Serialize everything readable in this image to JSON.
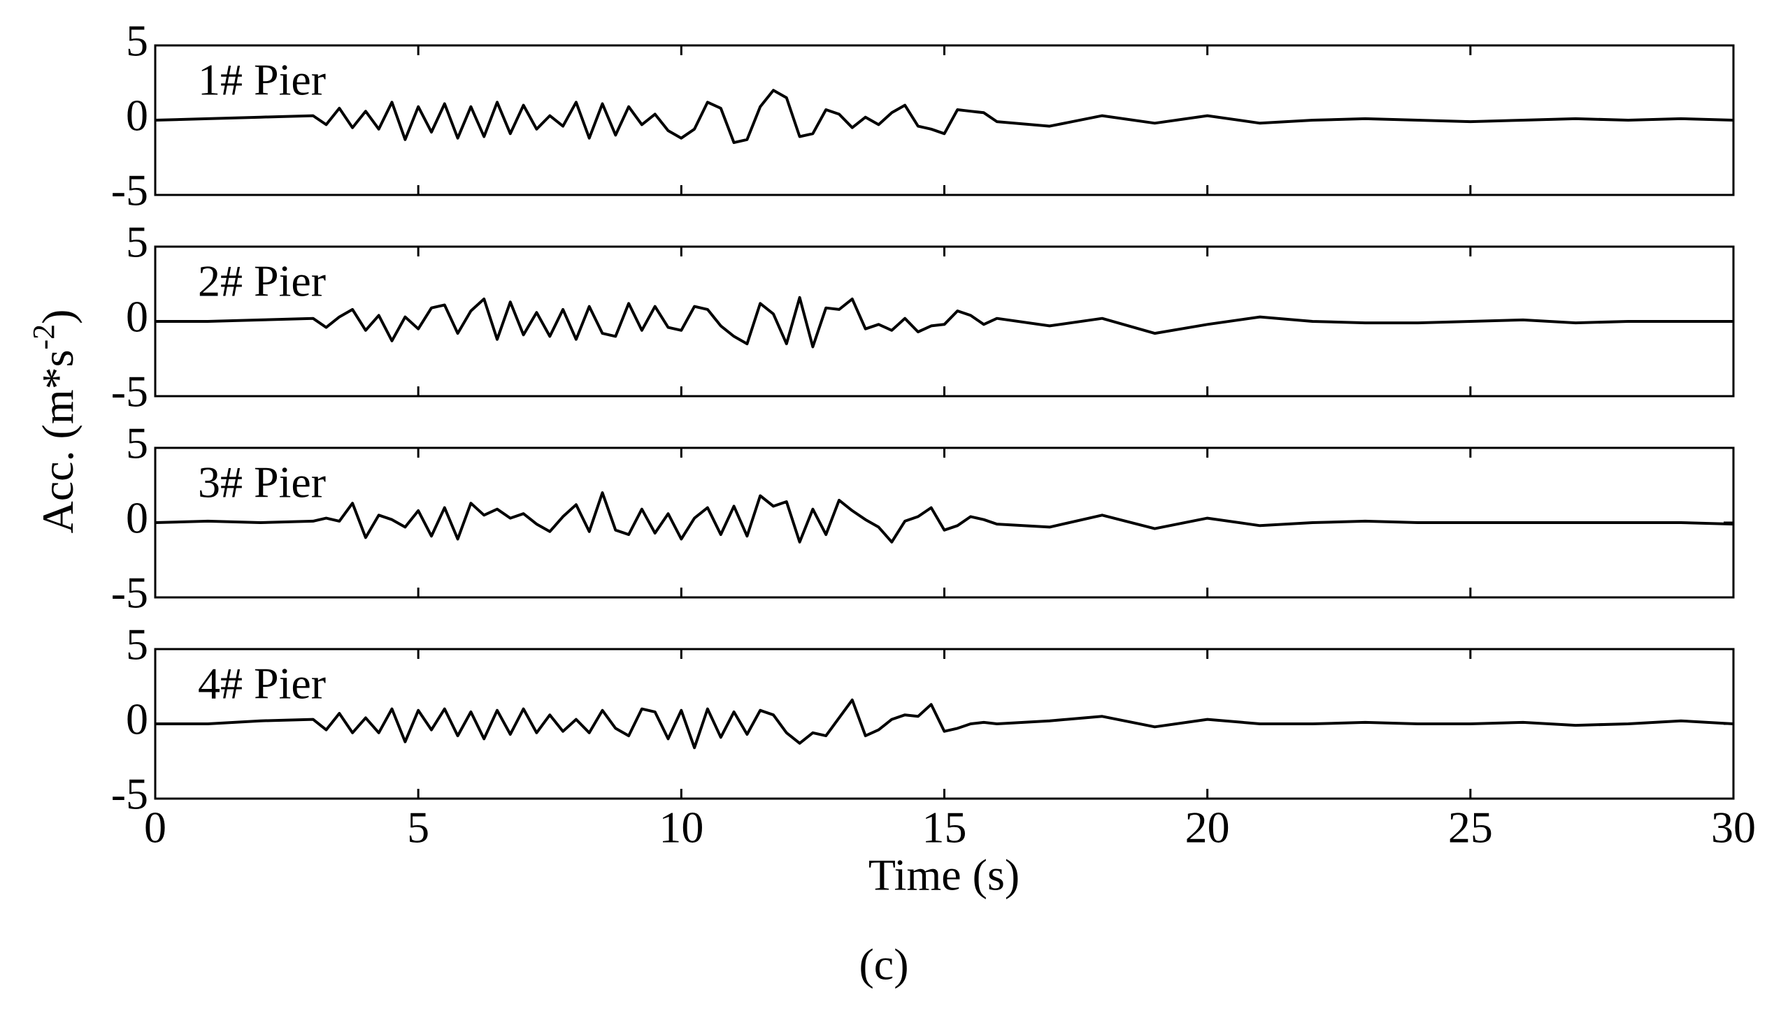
{
  "chart_data": [
    {
      "type": "line",
      "title": "1# Pier",
      "color": "#000000",
      "xlim": [
        0,
        30
      ],
      "xticks": [
        0,
        5,
        10,
        15,
        20,
        25,
        30
      ],
      "ylim": [
        -5,
        5
      ],
      "yticks": [
        -5,
        0,
        5
      ],
      "x": [
        0,
        1,
        2,
        3,
        3.25,
        3.5,
        3.75,
        4,
        4.25,
        4.5,
        4.75,
        5,
        5.25,
        5.5,
        5.75,
        6,
        6.25,
        6.5,
        6.75,
        7,
        7.25,
        7.5,
        7.75,
        8,
        8.25,
        8.5,
        8.75,
        9,
        9.25,
        9.5,
        9.75,
        10,
        10.25,
        10.5,
        10.75,
        11,
        11.25,
        11.5,
        11.75,
        12,
        12.25,
        12.5,
        12.75,
        13,
        13.25,
        13.5,
        13.75,
        14,
        14.25,
        14.5,
        14.75,
        15,
        15.25,
        15.5,
        15.75,
        16,
        17,
        18,
        19,
        20,
        21,
        22,
        23,
        24,
        25,
        26,
        27,
        28,
        29,
        30
      ],
      "values": [
        0,
        0.1,
        0.2,
        0.3,
        -0.3,
        0.8,
        -0.5,
        0.6,
        -0.6,
        1.2,
        -1.3,
        0.9,
        -0.8,
        1.1,
        -1.2,
        0.9,
        -1.1,
        1.2,
        -0.9,
        1.0,
        -0.6,
        0.3,
        -0.4,
        1.2,
        -1.2,
        1.1,
        -1.0,
        0.9,
        -0.3,
        0.4,
        -0.7,
        -1.2,
        -0.6,
        1.2,
        0.8,
        -1.5,
        -1.3,
        0.9,
        2.0,
        1.5,
        -1.1,
        -0.9,
        0.7,
        0.4,
        -0.5,
        0.2,
        -0.3,
        0.5,
        1.0,
        -0.4,
        -0.6,
        -0.9,
        0.7,
        0.6,
        0.5,
        -0.1,
        -0.4,
        0.3,
        -0.2,
        0.3,
        -0.2,
        0,
        0.1,
        0,
        -0.1,
        0,
        0.1,
        0,
        0.1,
        0
      ]
    },
    {
      "type": "line",
      "title": "2# Pier",
      "color": "#000000",
      "xlim": [
        0,
        30
      ],
      "xticks": [
        0,
        5,
        10,
        15,
        20,
        25,
        30
      ],
      "ylim": [
        -5,
        5
      ],
      "yticks": [
        -5,
        0,
        5
      ],
      "x": [
        0,
        1,
        2,
        3,
        3.25,
        3.5,
        3.75,
        4,
        4.25,
        4.5,
        4.75,
        5,
        5.25,
        5.5,
        5.75,
        6,
        6.25,
        6.5,
        6.75,
        7,
        7.25,
        7.5,
        7.75,
        8,
        8.25,
        8.5,
        8.75,
        9,
        9.25,
        9.5,
        9.75,
        10,
        10.25,
        10.5,
        10.75,
        11,
        11.25,
        11.5,
        11.75,
        12,
        12.25,
        12.5,
        12.75,
        13,
        13.25,
        13.5,
        13.75,
        14,
        14.25,
        14.5,
        14.75,
        15,
        15.25,
        15.5,
        15.75,
        16,
        17,
        18,
        19,
        20,
        21,
        22,
        23,
        24,
        25,
        26,
        27,
        28,
        29,
        30
      ],
      "values": [
        0,
        0,
        0.1,
        0.2,
        -0.4,
        0.3,
        0.8,
        -0.6,
        0.4,
        -1.3,
        0.3,
        -0.5,
        0.9,
        1.1,
        -0.8,
        0.7,
        1.5,
        -1.2,
        1.3,
        -0.9,
        0.6,
        -1.0,
        0.8,
        -1.2,
        1.0,
        -0.8,
        -1.0,
        1.2,
        -0.6,
        1.0,
        -0.4,
        -0.6,
        1.0,
        0.8,
        -0.3,
        -1.0,
        -1.5,
        1.2,
        0.5,
        -1.5,
        1.6,
        -1.7,
        0.9,
        0.8,
        1.5,
        -0.5,
        -0.2,
        -0.6,
        0.2,
        -0.7,
        -0.3,
        -0.2,
        0.7,
        0.4,
        -0.2,
        0.2,
        -0.3,
        0.2,
        -0.8,
        -0.2,
        0.3,
        0,
        -0.1,
        -0.1,
        0,
        0.1,
        -0.1,
        0,
        0,
        0
      ]
    },
    {
      "type": "line",
      "title": "3# Pier",
      "color": "#000000",
      "xlim": [
        0,
        30
      ],
      "xticks": [
        0,
        5,
        10,
        15,
        20,
        25,
        30
      ],
      "ylim": [
        -5,
        5
      ],
      "yticks": [
        -5,
        0,
        5
      ],
      "x": [
        0,
        1,
        2,
        3,
        3.25,
        3.5,
        3.75,
        4,
        4.25,
        4.5,
        4.75,
        5,
        5.25,
        5.5,
        5.75,
        6,
        6.25,
        6.5,
        6.75,
        7,
        7.25,
        7.5,
        7.75,
        8,
        8.25,
        8.5,
        8.75,
        9,
        9.25,
        9.5,
        9.75,
        10,
        10.25,
        10.5,
        10.75,
        11,
        11.25,
        11.5,
        11.75,
        12,
        12.25,
        12.5,
        12.75,
        13,
        13.25,
        13.5,
        13.75,
        14,
        14.25,
        14.5,
        14.75,
        15,
        15.25,
        15.5,
        15.75,
        16,
        17,
        18,
        19,
        20,
        21,
        22,
        23,
        24,
        25,
        26,
        27,
        28,
        29,
        30
      ],
      "values": [
        0,
        0.1,
        0,
        0.1,
        0.3,
        0.1,
        1.3,
        -1.0,
        0.5,
        0.2,
        -0.3,
        0.8,
        -0.9,
        1.0,
        -1.1,
        1.3,
        0.5,
        0.9,
        0.3,
        0.6,
        -0.1,
        -0.6,
        0.4,
        1.2,
        -0.6,
        2.0,
        -0.5,
        -0.8,
        0.9,
        -0.7,
        0.6,
        -1.1,
        0.3,
        1.0,
        -0.8,
        1.1,
        -0.9,
        1.8,
        1.1,
        1.4,
        -1.3,
        0.9,
        -0.8,
        1.5,
        0.8,
        0.2,
        -0.3,
        -1.3,
        0.1,
        0.4,
        1.0,
        -0.5,
        -0.2,
        0.4,
        0.2,
        -0.1,
        -0.3,
        0.5,
        -0.4,
        0.3,
        -0.2,
        0,
        0.1,
        0,
        0,
        0,
        0,
        0,
        0,
        -0.1
      ]
    },
    {
      "type": "line",
      "title": "4# Pier",
      "color": "#000000",
      "xlim": [
        0,
        30
      ],
      "xticks": [
        0,
        5,
        10,
        15,
        20,
        25,
        30
      ],
      "ylim": [
        -5,
        5
      ],
      "yticks": [
        -5,
        0,
        5
      ],
      "x": [
        0,
        1,
        2,
        3,
        3.25,
        3.5,
        3.75,
        4,
        4.25,
        4.5,
        4.75,
        5,
        5.25,
        5.5,
        5.75,
        6,
        6.25,
        6.5,
        6.75,
        7,
        7.25,
        7.5,
        7.75,
        8,
        8.25,
        8.5,
        8.75,
        9,
        9.25,
        9.5,
        9.75,
        10,
        10.25,
        10.5,
        10.75,
        11,
        11.25,
        11.5,
        11.75,
        12,
        12.25,
        12.5,
        12.75,
        13,
        13.25,
        13.5,
        13.75,
        14,
        14.25,
        14.5,
        14.75,
        15,
        15.25,
        15.5,
        15.75,
        16,
        17,
        18,
        19,
        20,
        21,
        22,
        23,
        24,
        25,
        26,
        27,
        28,
        29,
        30
      ],
      "values": [
        0,
        0,
        0.2,
        0.3,
        -0.4,
        0.7,
        -0.6,
        0.4,
        -0.6,
        1.0,
        -1.2,
        0.9,
        -0.4,
        1.0,
        -0.8,
        0.8,
        -1.0,
        0.9,
        -0.7,
        1.0,
        -0.6,
        0.6,
        -0.5,
        0.3,
        -0.6,
        0.9,
        -0.3,
        -0.8,
        1.0,
        0.8,
        -1.0,
        0.9,
        -1.6,
        1.0,
        -0.9,
        0.8,
        -0.7,
        0.9,
        0.6,
        -0.6,
        -1.3,
        -0.6,
        -0.8,
        0.4,
        1.6,
        -0.8,
        -0.4,
        0.3,
        0.6,
        0.5,
        1.3,
        -0.5,
        -0.3,
        0,
        0.1,
        0,
        0.2,
        0.5,
        -0.2,
        0.3,
        0,
        0,
        0.1,
        0,
        0,
        0.1,
        -0.1,
        0,
        0.2,
        0
      ]
    }
  ],
  "xlabel": "Time (s)",
  "ylabel": [
    "Acc. (m*s",
    "-2",
    ")"
  ],
  "caption": "(c)"
}
